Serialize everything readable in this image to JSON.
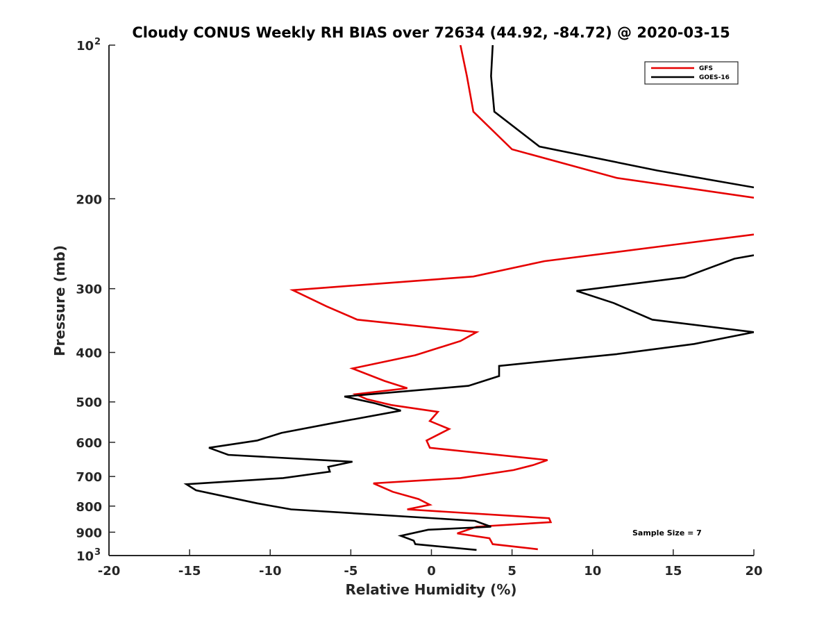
{
  "chart_data": {
    "type": "line",
    "title": "Cloudy CONUS Weekly RH BIAS over 72634 (44.92, -84.72) @ 2020-03-15",
    "xlabel": "Relative Humidity (%)",
    "ylabel": "Pressure (mb)",
    "xlim": [
      -20,
      20
    ],
    "ylim": [
      1000,
      100
    ],
    "yscale": "log",
    "y_reversed": true,
    "grid": false,
    "legend_position": "top-right",
    "x_ticks": [
      "-20",
      "-15",
      "-10",
      "-5",
      "0",
      "5",
      "10",
      "15",
      "20"
    ],
    "y_ticks": [
      {
        "value": 100,
        "base": "10",
        "exp": "2"
      },
      {
        "value": 200,
        "label": "200"
      },
      {
        "value": 300,
        "label": "300"
      },
      {
        "value": 400,
        "label": "400"
      },
      {
        "value": 500,
        "label": "500"
      },
      {
        "value": 600,
        "label": "600"
      },
      {
        "value": 700,
        "label": "700"
      },
      {
        "value": 800,
        "label": "800"
      },
      {
        "value": 900,
        "label": "900"
      },
      {
        "value": 1000,
        "base": "10",
        "exp": "3"
      }
    ],
    "annotation": "Sample Size = 7",
    "series": [
      {
        "name": "GFS",
        "color": "#e60000",
        "points": [
          [
            1.8,
            100
          ],
          [
            2.2,
            115
          ],
          [
            2.6,
            135
          ],
          [
            5.0,
            160
          ],
          [
            11.5,
            182
          ],
          [
            20.0,
            199
          ],
          [
            null,
            210
          ],
          [
            20.0,
            235
          ],
          [
            15.5,
            245
          ],
          [
            7.0,
            265
          ],
          [
            2.6,
            284
          ],
          [
            -8.6,
            302
          ],
          [
            -6.5,
            325
          ],
          [
            -4.6,
            345
          ],
          [
            2.8,
            365
          ],
          [
            1.8,
            380
          ],
          [
            -1.0,
            405
          ],
          [
            -4.9,
            430
          ],
          [
            -2.9,
            455
          ],
          [
            -1.5,
            470
          ],
          [
            -4.7,
            483
          ],
          [
            -4.0,
            494
          ],
          [
            -2.5,
            507
          ],
          [
            0.4,
            523
          ],
          [
            -0.1,
            545
          ],
          [
            1.1,
            565
          ],
          [
            -0.3,
            595
          ],
          [
            -0.1,
            615
          ],
          [
            7.2,
            650
          ],
          [
            6.3,
            665
          ],
          [
            5.1,
            680
          ],
          [
            1.8,
            705
          ],
          [
            -3.6,
            722
          ],
          [
            -2.4,
            750
          ],
          [
            -0.8,
            775
          ],
          [
            -0.1,
            795
          ],
          [
            -1.5,
            812
          ],
          [
            7.3,
            845
          ],
          [
            7.4,
            860
          ],
          [
            2.8,
            878
          ],
          [
            1.6,
            905
          ],
          [
            3.6,
            925
          ],
          [
            3.8,
            950
          ],
          [
            6.6,
            972
          ]
        ]
      },
      {
        "name": "GOES-16",
        "color": "#000000",
        "points": [
          [
            3.8,
            100
          ],
          [
            3.7,
            115
          ],
          [
            3.9,
            135
          ],
          [
            6.7,
            158
          ],
          [
            14.0,
            176
          ],
          [
            20.0,
            190
          ],
          [
            null,
            210
          ],
          [
            20.0,
            258
          ],
          [
            18.8,
            262
          ],
          [
            15.7,
            285
          ],
          [
            9.0,
            303
          ],
          [
            11.3,
            320
          ],
          [
            13.7,
            345
          ],
          [
            20.0,
            365
          ],
          [
            16.3,
            385
          ],
          [
            11.5,
            403
          ],
          [
            4.2,
            425
          ],
          [
            4.2,
            445
          ],
          [
            2.3,
            465
          ],
          [
            -5.4,
            488
          ],
          [
            -3.5,
            503
          ],
          [
            -1.9,
            520
          ],
          [
            -6.1,
            550
          ],
          [
            -9.3,
            575
          ],
          [
            -10.8,
            595
          ],
          [
            -13.8,
            615
          ],
          [
            -12.6,
            635
          ],
          [
            -4.9,
            655
          ],
          [
            -6.4,
            670
          ],
          [
            -6.3,
            685
          ],
          [
            -9.2,
            705
          ],
          [
            -15.2,
            725
          ],
          [
            -14.6,
            745
          ],
          [
            -10.8,
            790
          ],
          [
            -8.7,
            812
          ],
          [
            2.7,
            855
          ],
          [
            3.7,
            878
          ],
          [
            -0.2,
            890
          ],
          [
            -1.9,
            915
          ],
          [
            -1.1,
            935
          ],
          [
            -1.0,
            950
          ],
          [
            2.8,
            975
          ]
        ]
      }
    ]
  }
}
